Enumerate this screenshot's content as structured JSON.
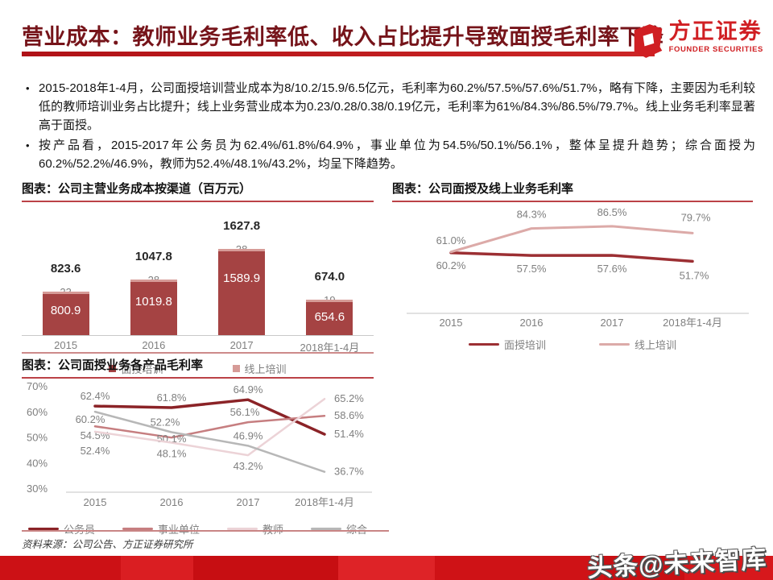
{
  "header": {
    "title": "营业成本：教师业务毛利率低、收入占比提升导致面授毛利率下降",
    "logo": {
      "cn": "方正证券",
      "en": "FOUNDER SECURITIES"
    },
    "accent_color": "#c4181c",
    "title_color": "#76141a"
  },
  "bullets": [
    "2015-2018年1-4月，公司面授培训营业成本为8/10.2/15.9/6.5亿元，毛利率为60.2%/57.5%/57.6%/51.7%，略有下降，主要因为毛利较低的教师培训业务占比提升；线上业务营业成本为0.23/0.28/0.38/0.19亿元，毛利率为61%/84.3%/86.5%/79.7%。线上业务毛利率显著高于面授。",
    "按产品看，2015-2017年公务员为62.4%/61.8%/64.9%，事业单位为54.5%/50.1%/56.1%，整体呈提升趋势；综合面授为60.2%/52.2%/46.9%，教师为52.4%/48.1%/43.2%，均呈下降趋势。"
  ],
  "chart_data": [
    {
      "type": "bar",
      "title": "图表：公司主营业务成本按渠道（百万元）",
      "categories": [
        "2015",
        "2016",
        "2017",
        "2018年1-4月"
      ],
      "series": [
        {
          "name": "面授培训",
          "values": [
            800.9,
            1019.8,
            1589.9,
            654.6
          ],
          "color": "#a54343"
        },
        {
          "name": "线上培训",
          "values": [
            23,
            28,
            38,
            19
          ],
          "color": "#d69b97"
        }
      ],
      "totals": [
        "823.6",
        "1047.8",
        "1627.8",
        "674.0"
      ],
      "stacked": true,
      "ylim": [
        0,
        1700
      ],
      "grid": false,
      "legend_position": "bottom"
    },
    {
      "type": "line",
      "title": "图表：公司面授及线上业务毛利率",
      "categories": [
        "2015",
        "2016",
        "2017",
        "2018年1-4月"
      ],
      "series": [
        {
          "name": "面授培训",
          "values": [
            60.2,
            57.5,
            57.6,
            51.7
          ],
          "color": "#9c2f33"
        },
        {
          "name": "线上培训",
          "values": [
            61.0,
            84.3,
            86.5,
            79.7
          ],
          "color": "#dcaaa8"
        }
      ],
      "ylim": [
        0,
        100
      ],
      "grid": false,
      "legend_position": "bottom"
    },
    {
      "type": "line",
      "title": "图表：公司面授业务各产品毛利率",
      "categories": [
        "2015",
        "2016",
        "2017",
        "2018年1-4月"
      ],
      "series": [
        {
          "name": "公务员",
          "values": [
            62.4,
            61.8,
            64.9,
            51.4
          ],
          "color": "#8b2327"
        },
        {
          "name": "事业单位",
          "values": [
            54.5,
            50.1,
            56.1,
            58.6
          ],
          "color": "#c67e80"
        },
        {
          "name": "教师",
          "values": [
            52.4,
            48.1,
            43.2,
            65.2
          ],
          "color": "#ecd3d7"
        },
        {
          "name": "综合",
          "values": [
            60.2,
            52.2,
            46.9,
            36.7
          ],
          "color": "#b7b7b7"
        }
      ],
      "yticks": [
        "70%",
        "60%",
        "50%",
        "40%",
        "30%"
      ],
      "ylim": [
        30,
        70
      ],
      "grid": false,
      "legend_position": "bottom"
    }
  ],
  "footer": {
    "source": "资料来源：公司公告、方正证券研究所",
    "watermark": "头条@未来智库"
  }
}
